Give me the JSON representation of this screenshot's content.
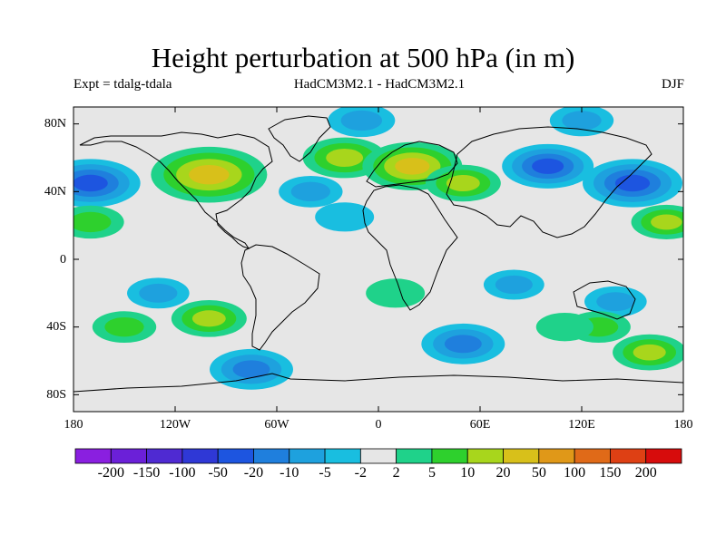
{
  "title": "Height perturbation at 500 hPa (in m)",
  "subtitle_left": "Expt = tdalg-tdala",
  "subtitle_center": "HadCM3M2.1 - HadCM3M2.1",
  "subtitle_right": "DJF",
  "y_ticks": [
    "80N",
    "40N",
    "0",
    "40S",
    "80S"
  ],
  "x_ticks": [
    "180",
    "120W",
    "60W",
    "0",
    "60E",
    "120E",
    "180"
  ],
  "colorbar": {
    "labels": [
      "-200",
      "-150",
      "-100",
      "-50",
      "-20",
      "-10",
      "-5",
      "-2",
      "2",
      "5",
      "10",
      "20",
      "50",
      "100",
      "150",
      "200"
    ],
    "colors": [
      "#8a1fe0",
      "#6b20d8",
      "#4f2ad2",
      "#2f38d6",
      "#1d55e0",
      "#1f7fdd",
      "#1ea1de",
      "#19bee0",
      "#e6e6e6",
      "#1fd28a",
      "#2ed02d",
      "#a8d61c",
      "#d8c01a",
      "#e09818",
      "#e06a18",
      "#de4014",
      "#d70c0c"
    ]
  },
  "chart_data": {
    "type": "heatmap",
    "title": "Height perturbation at 500 hPa (in m)",
    "x_range": [
      -180,
      180
    ],
    "y_range": [
      -90,
      90
    ],
    "xlabel": "",
    "ylabel": "",
    "levels": [
      -200,
      -150,
      -100,
      -50,
      -20,
      -10,
      -5,
      -2,
      2,
      5,
      10,
      20,
      50,
      100,
      150,
      200
    ],
    "anomalies": [
      {
        "lon": -100,
        "lat": 50,
        "value": 40
      },
      {
        "lon": -20,
        "lat": 60,
        "value": 20
      },
      {
        "lon": 20,
        "lat": 55,
        "value": 30
      },
      {
        "lon": 50,
        "lat": 45,
        "value": 15
      },
      {
        "lon": 100,
        "lat": 55,
        "value": -25
      },
      {
        "lon": 150,
        "lat": 45,
        "value": -30
      },
      {
        "lon": -170,
        "lat": 45,
        "value": -30
      },
      {
        "lon": -40,
        "lat": 40,
        "value": -8
      },
      {
        "lon": -10,
        "lat": 82,
        "value": -10
      },
      {
        "lon": 120,
        "lat": 82,
        "value": -8
      },
      {
        "lon": -20,
        "lat": 25,
        "value": -5
      },
      {
        "lon": 170,
        "lat": 22,
        "value": 12
      },
      {
        "lon": -170,
        "lat": 22,
        "value": 10
      },
      {
        "lon": -130,
        "lat": -20,
        "value": -7
      },
      {
        "lon": 80,
        "lat": -15,
        "value": -6
      },
      {
        "lon": 140,
        "lat": -25,
        "value": -7
      },
      {
        "lon": -150,
        "lat": -40,
        "value": 8
      },
      {
        "lon": -100,
        "lat": -35,
        "value": 15
      },
      {
        "lon": 10,
        "lat": -20,
        "value": 5
      },
      {
        "lon": 130,
        "lat": -40,
        "value": 8
      },
      {
        "lon": 160,
        "lat": -55,
        "value": 14
      },
      {
        "lon": -75,
        "lat": -65,
        "value": -20
      },
      {
        "lon": 50,
        "lat": -50,
        "value": -20
      },
      {
        "lon": 110,
        "lat": -40,
        "value": 4
      }
    ]
  }
}
